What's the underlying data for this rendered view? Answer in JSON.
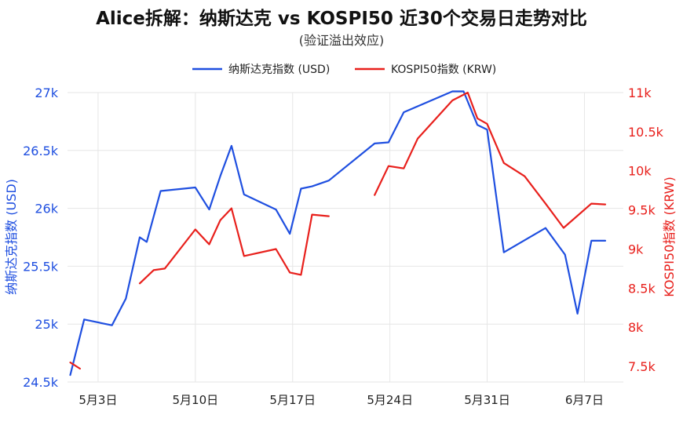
{
  "chart_data": {
    "type": "line",
    "title": "Alice拆解：纳斯达克 vs KOSPI50 近30个交易日走势对比",
    "subtitle": "(验证溢出效应)",
    "x_ticks": [
      "5月3日",
      "5月10日",
      "5月17日",
      "5月24日",
      "5月31日",
      "6月7日"
    ],
    "x_tick_days": [
      3,
      10,
      17,
      24,
      31,
      38
    ],
    "x_range_days": [
      0.8,
      40.8
    ],
    "y_left": {
      "label": "纳斯达克指数 (USD)",
      "range": [
        24500,
        27000
      ],
      "ticks": [
        24500,
        25000,
        25500,
        26000,
        26500,
        27000
      ],
      "tick_labels": [
        "24.5k",
        "25k",
        "25.5k",
        "26k",
        "26.5k",
        "27k"
      ],
      "color": "#1f4fe0"
    },
    "y_right": {
      "label": "KOSPI50指数 (KRW)",
      "range": [
        7300,
        11000
      ],
      "ticks": [
        7500,
        8000,
        8500,
        9000,
        9500,
        10000,
        10500,
        11000
      ],
      "tick_labels": [
        "7.5k",
        "8k",
        "8.5k",
        "9k",
        "9.5k",
        "10k",
        "10.5k",
        "11k"
      ],
      "color": "#e8201c"
    },
    "legend": {
      "placement": "top-center"
    },
    "grid": true,
    "series": [
      {
        "name": "纳斯达克指数 (USD)",
        "axis": "left",
        "color": "#1f4fe0",
        "points": [
          [
            1,
            24560
          ],
          [
            2,
            25040
          ],
          [
            4,
            24990
          ],
          [
            5,
            25220
          ],
          [
            6,
            25750
          ],
          [
            6.5,
            25710
          ],
          [
            7.5,
            26150
          ],
          [
            10,
            26180
          ],
          [
            11,
            25990
          ],
          [
            11.8,
            26280
          ],
          [
            12.6,
            26540
          ],
          [
            13.5,
            26120
          ],
          [
            15.8,
            25990
          ],
          [
            16.8,
            25780
          ],
          [
            17.6,
            26170
          ],
          [
            18.4,
            26190
          ],
          [
            19.6,
            26240
          ],
          [
            22.9,
            26560
          ],
          [
            23.9,
            26570
          ],
          [
            25.0,
            26830
          ],
          [
            28.5,
            27010
          ],
          [
            29.3,
            27010
          ],
          [
            30.3,
            26720
          ],
          [
            31.0,
            26680
          ],
          [
            32.2,
            25620
          ],
          [
            35.2,
            25830
          ],
          [
            36.6,
            25600
          ],
          [
            37.5,
            25090
          ],
          [
            38.5,
            25720
          ],
          [
            39.5,
            25720
          ]
        ]
      },
      {
        "name": "KOSPI50指数 (KRW)",
        "axis": "right",
        "color": "#e8201c",
        "points": [
          [
            1,
            7550
          ],
          [
            1.7,
            7470
          ],
          [
            6,
            8560
          ],
          [
            7,
            8730
          ],
          [
            7.8,
            8750
          ],
          [
            10,
            9250
          ],
          [
            11,
            9060
          ],
          [
            11.8,
            9370
          ],
          [
            12.6,
            9520
          ],
          [
            13.5,
            8910
          ],
          [
            15.8,
            9000
          ],
          [
            16.8,
            8700
          ],
          [
            17.6,
            8670
          ],
          [
            18.4,
            9440
          ],
          [
            19.6,
            9420
          ],
          [
            22.9,
            9690
          ],
          [
            23.9,
            10060
          ],
          [
            25.0,
            10030
          ],
          [
            26,
            10410
          ],
          [
            28.5,
            10900
          ],
          [
            29.6,
            11000
          ],
          [
            30.3,
            10670
          ],
          [
            31.0,
            10600
          ],
          [
            32.2,
            10100
          ],
          [
            33.7,
            9930
          ],
          [
            35.2,
            9580
          ],
          [
            36.5,
            9270
          ],
          [
            38.5,
            9580
          ],
          [
            39.5,
            9570
          ]
        ]
      }
    ]
  }
}
